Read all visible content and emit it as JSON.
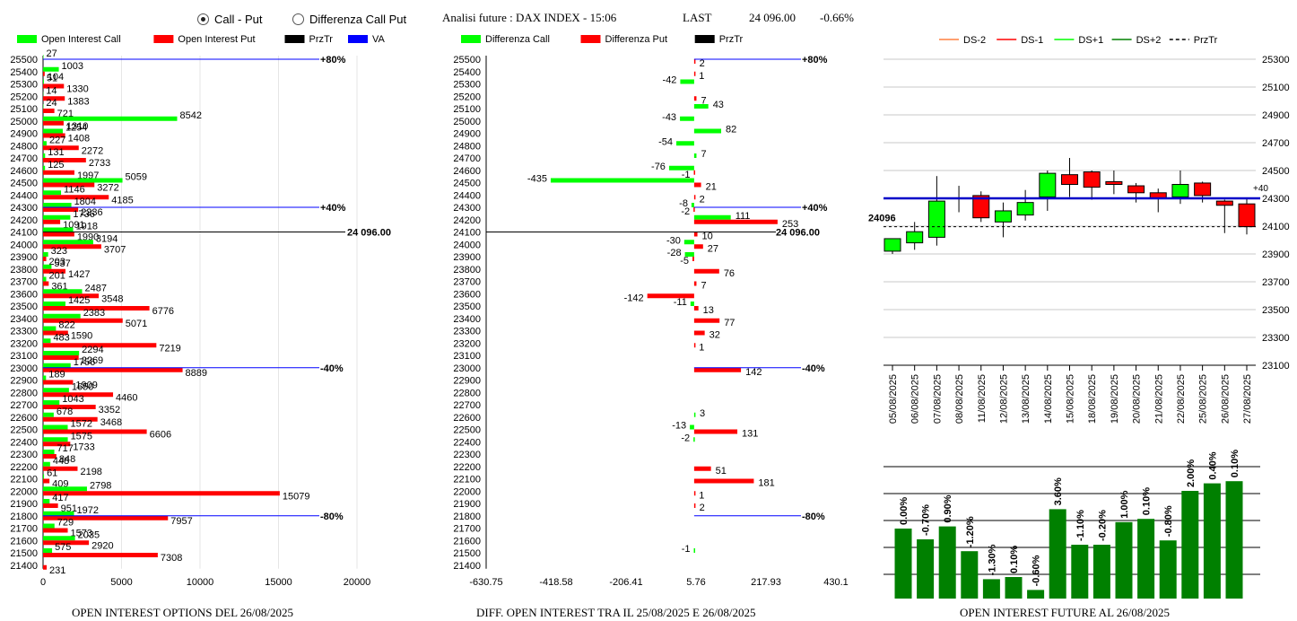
{
  "header": {
    "radio_call_put": "Call - Put",
    "radio_diff": "Differenza Call Put",
    "radio_selected": "call_put",
    "analisi": "Analisi future : DAX INDEX - 15:06",
    "last_label": "LAST",
    "last_value": "24 096.00",
    "change": "-0.66%"
  },
  "colors": {
    "green": "#00ff00",
    "red": "#ff0000",
    "black": "#000000",
    "blue": "#0000ff",
    "dark_green": "#008000",
    "candle_up": "#00ff00",
    "candle_down": "#ff0000"
  },
  "chart_data": [
    {
      "type": "bar",
      "orientation": "horizontal",
      "footer": "OPEN INTEREST OPTIONS DEL 26/08/2025",
      "legend": [
        "Open Interest Call",
        "Open Interest Put",
        "PrzTr",
        "VA"
      ],
      "xlim": [
        0,
        20000
      ],
      "xticks": [
        "0",
        "5000",
        "10000",
        "15000",
        "20000"
      ],
      "categories": [
        "25500",
        "25400",
        "25300",
        "25200",
        "25100",
        "25000",
        "24900",
        "24800",
        "24700",
        "24600",
        "24500",
        "24400",
        "24300",
        "24200",
        "24100",
        "24000",
        "23900",
        "23800",
        "23700",
        "23600",
        "23500",
        "23400",
        "23300",
        "23200",
        "23100",
        "23000",
        "22900",
        "22800",
        "22700",
        "22600",
        "22500",
        "22400",
        "22300",
        "22200",
        "22100",
        "22000",
        "21900",
        "21800",
        "21700",
        "21600",
        "21500",
        "21400"
      ],
      "series": [
        {
          "name": "Open Interest Call",
          "values": [
            27,
            1003,
            51,
            14,
            24,
            8542,
            1254,
            227,
            131,
            125,
            5059,
            1146,
            1804,
            1736,
            1918,
            3194,
            323,
            537,
            201,
            2487,
            1425,
            2383,
            822,
            483,
            2294,
            1756,
            189,
            1650,
            1043,
            678,
            1572,
            1575,
            717,
            448,
            61,
            2798,
            417,
            1972,
            729,
            2035,
            575,
            0
          ]
        },
        {
          "name": "Open Interest Put",
          "values": [
            0,
            104,
            1330,
            1383,
            721,
            1310,
            1408,
            2272,
            2733,
            1997,
            3272,
            4185,
            2236,
            1091,
            1990,
            3707,
            203,
            1427,
            361,
            3548,
            6776,
            5071,
            1590,
            7219,
            2269,
            8889,
            1909,
            4460,
            3352,
            3468,
            6606,
            1733,
            848,
            2198,
            409,
            15079,
            951,
            7957,
            1573,
            2920,
            7308,
            231
          ]
        }
      ],
      "annotations": [
        {
          "strike": "25500",
          "label": "+80%"
        },
        {
          "strike": "24300",
          "label": "+40%"
        },
        {
          "strike": "24100",
          "label": "24 096.00"
        },
        {
          "strike": "23000",
          "label": "-40%"
        },
        {
          "strike": "21800",
          "label": "-80%"
        }
      ]
    },
    {
      "type": "bar",
      "orientation": "horizontal",
      "footer": "DIFF. OPEN INTEREST TRA IL 25/08/2025 E 26/08/2025",
      "legend": [
        "Differenza Call",
        "Differenza Put",
        "PrzTr"
      ],
      "xlim": [
        -630.75,
        430.1
      ],
      "xticks": [
        "-630.75",
        "-418.58",
        "-206.41",
        "5.76",
        "217.93",
        "430.1"
      ],
      "series": [
        {
          "name": "Differenza Call",
          "values": [
            0,
            0,
            -42,
            0,
            43,
            -43,
            82,
            -54,
            7,
            -76,
            -435,
            0,
            -8,
            111,
            0,
            -30,
            -28,
            0,
            0,
            0,
            -11,
            0,
            0,
            0,
            0,
            0,
            0,
            0,
            0,
            3,
            -13,
            -2,
            0,
            0,
            0,
            0,
            0,
            0,
            0,
            0,
            -1,
            0
          ]
        },
        {
          "name": "Differenza Put",
          "values": [
            2,
            1,
            0,
            7,
            0,
            0,
            0,
            0,
            0,
            -1,
            21,
            2,
            -2,
            253,
            10,
            27,
            -5,
            76,
            7,
            -142,
            13,
            77,
            32,
            1,
            0,
            142,
            0,
            0,
            0,
            0,
            131,
            0,
            0,
            51,
            181,
            1,
            2,
            0,
            0,
            0,
            0,
            0
          ]
        }
      ],
      "annotations": [
        {
          "strike": "25500",
          "label": "+80%"
        },
        {
          "strike": "24300",
          "label": "+40%"
        },
        {
          "strike": "24100",
          "label": "24 096.00"
        },
        {
          "strike": "23000",
          "label": "-40%"
        },
        {
          "strike": "21800",
          "label": "-80%"
        }
      ]
    },
    {
      "type": "candlestick",
      "legend": [
        "DS-2",
        "DS-1",
        "DS+1",
        "DS+2",
        "PrzTr"
      ],
      "ylim": [
        23100,
        25300
      ],
      "yticks": [
        "25300",
        "25100",
        "24900",
        "24700",
        "24500",
        "24300",
        "24100",
        "23900",
        "23700",
        "23500",
        "23300",
        "23100"
      ],
      "x": [
        "05/08/2025",
        "06/08/2025",
        "07/08/2025",
        "08/08/2025",
        "11/08/2025",
        "12/08/2025",
        "13/08/2025",
        "14/08/2025",
        "15/08/2025",
        "18/08/2025",
        "19/08/2025",
        "20/08/2025",
        "21/08/2025",
        "22/08/2025",
        "25/08/2025",
        "26/08/2025",
        "27/08/2025"
      ],
      "open": [
        23920,
        23980,
        24020,
        null,
        24320,
        24130,
        24180,
        24310,
        24470,
        24490,
        24420,
        24390,
        24340,
        24310,
        24410,
        24280,
        24260
      ],
      "close": [
        24010,
        24060,
        24280,
        null,
        24160,
        24210,
        24270,
        24480,
        24400,
        24380,
        24400,
        24340,
        24300,
        24400,
        24320,
        24250,
        24096
      ],
      "high": [
        24010,
        24130,
        24460,
        24390,
        24350,
        24270,
        24360,
        24500,
        24590,
        24500,
        24500,
        24410,
        24370,
        24500,
        24420,
        24290,
        24300
      ],
      "low": [
        23900,
        23930,
        23960,
        24200,
        24130,
        24020,
        24140,
        24210,
        24310,
        24290,
        24330,
        24270,
        24200,
        24260,
        24270,
        24050,
        24040
      ],
      "hlines": [
        {
          "name": "VA",
          "value": 24300
        },
        {
          "name": "PrzTr",
          "value": 24096
        }
      ],
      "labels": [
        "24096",
        "+40"
      ]
    },
    {
      "type": "bar",
      "footer": "OPEN INTEREST FUTURE AL 26/08/2025",
      "values": [
        0.0,
        -0.7,
        0.9,
        -1.2,
        -1.3,
        0.1,
        -0.6,
        3.6,
        -1.1,
        -0.2,
        1.0,
        0.1,
        -0.8,
        2.0,
        0.4,
        0.1
      ],
      "labels": [
        "0.00%",
        "-0.70%",
        "0.90%",
        "-1.20%",
        "-1.30%",
        "0.10%",
        "-0.60%",
        "3.60%",
        "-1.10%",
        "-0.20%",
        "1.00%",
        "0.10%",
        "-0.80%",
        "2.00%",
        "0.40%",
        "0.10%"
      ],
      "relative_heights": [
        0.65,
        0.55,
        0.67,
        0.44,
        0.18,
        0.2,
        0.08,
        0.83,
        0.5,
        0.5,
        0.71,
        0.74,
        0.54,
        1.0,
        1.07,
        1.09
      ]
    }
  ]
}
